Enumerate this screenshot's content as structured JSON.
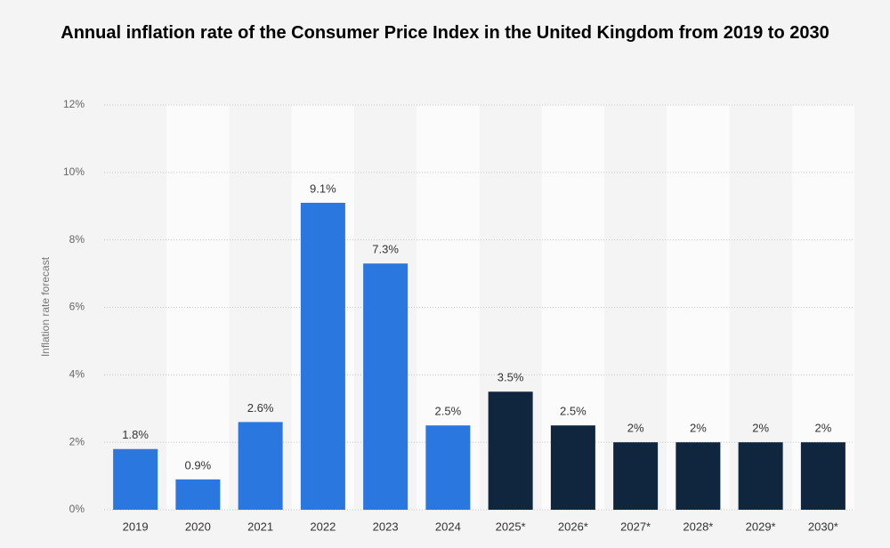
{
  "chart_data": {
    "type": "bar",
    "title": "Annual inflation rate of the Consumer Price Index in the United Kingdom from 2019 to 2030",
    "y_label": "Inflation rate forecast",
    "categories": [
      "2019",
      "2020",
      "2021",
      "2022",
      "2023",
      "2024",
      "2025*",
      "2026*",
      "2027*",
      "2028*",
      "2029*",
      "2030*"
    ],
    "values": [
      1.8,
      0.9,
      2.6,
      9.1,
      7.3,
      2.5,
      3.5,
      2.5,
      2,
      2,
      2,
      2
    ],
    "value_labels": [
      "1.8%",
      "0.9%",
      "2.6%",
      "9.1%",
      "7.3%",
      "2.5%",
      "3.5%",
      "2.5%",
      "2%",
      "2%",
      "2%",
      "2%"
    ],
    "colors": [
      "#2a77e0",
      "#2a77e0",
      "#2a77e0",
      "#2a77e0",
      "#2a77e0",
      "#2a77e0",
      "#10263e",
      "#10263e",
      "#10263e",
      "#10263e",
      "#10263e",
      "#10263e"
    ],
    "ylim": [
      0,
      12
    ],
    "yticks": [
      {
        "value": 0,
        "label": "0%"
      },
      {
        "value": 2,
        "label": "2%"
      },
      {
        "value": 4,
        "label": "4%"
      },
      {
        "value": 6,
        "label": "6%"
      },
      {
        "value": 8,
        "label": "8%"
      },
      {
        "value": 10,
        "label": "10%"
      },
      {
        "value": 12,
        "label": "12%"
      }
    ],
    "grid": true
  }
}
